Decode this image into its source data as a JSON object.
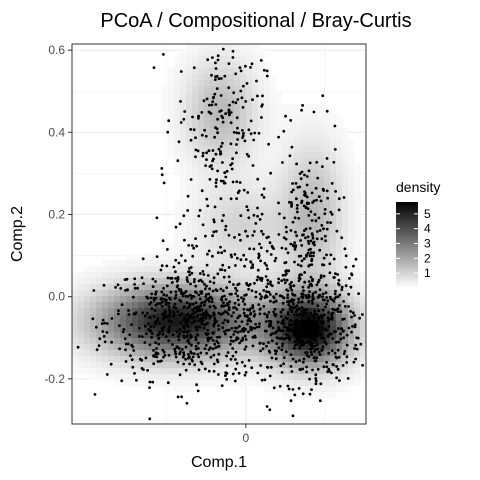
{
  "chart_data": {
    "type": "scatter",
    "title": "PCoA / Compositional / Bray-Curtis",
    "xlabel": "Comp.1",
    "ylabel": "Comp.2",
    "xlim": [
      -0.55,
      0.38
    ],
    "ylim": [
      -0.31,
      0.615
    ],
    "x_ticks": [
      {
        "value": 0,
        "label": "0"
      }
    ],
    "y_ticks": [
      {
        "value": -0.2,
        "label": "-0.2"
      },
      {
        "value": 0.0,
        "label": "0.0"
      },
      {
        "value": 0.2,
        "label": "0.2"
      },
      {
        "value": 0.4,
        "label": "0.4"
      },
      {
        "value": 0.6,
        "label": "0.6"
      }
    ],
    "grid": true,
    "background": "#ffffff",
    "point_color": "#000000",
    "legend": {
      "title": "density",
      "placement": "right",
      "range": [
        0,
        5.8
      ],
      "labels": [
        {
          "value": 1,
          "label": "1"
        },
        {
          "value": 2,
          "label": "2"
        },
        {
          "value": 3,
          "label": "3"
        },
        {
          "value": 4,
          "label": "4"
        },
        {
          "value": 5,
          "label": "5"
        }
      ],
      "colors": [
        "#ffffff",
        "#000000"
      ]
    },
    "point_clusters": [
      {
        "cx": -0.16,
        "cy": -0.06,
        "sx": 0.14,
        "sy": 0.07,
        "n": 700
      },
      {
        "cx": 0.19,
        "cy": -0.07,
        "sx": 0.09,
        "sy": 0.07,
        "n": 500
      },
      {
        "cx": 0.2,
        "cy": 0.14,
        "sx": 0.05,
        "sy": 0.12,
        "n": 200
      },
      {
        "cx": -0.08,
        "cy": 0.43,
        "sx": 0.07,
        "sy": 0.1,
        "n": 180
      },
      {
        "cx": -0.02,
        "cy": 0.15,
        "sx": 0.1,
        "sy": 0.08,
        "n": 120
      }
    ],
    "density_modes": [
      {
        "cx": -0.22,
        "cy": -0.06,
        "sx": 0.17,
        "sy": 0.06,
        "peak": 5.3
      },
      {
        "cx": 0.2,
        "cy": -0.08,
        "sx": 0.09,
        "sy": 0.06,
        "peak": 5.8
      },
      {
        "cx": 0.21,
        "cy": 0.2,
        "sx": 0.07,
        "sy": 0.12,
        "peak": 1.6
      },
      {
        "cx": -0.08,
        "cy": 0.45,
        "sx": 0.08,
        "sy": 0.09,
        "peak": 1.6
      },
      {
        "cx": -0.02,
        "cy": 0.17,
        "sx": 0.1,
        "sy": 0.07,
        "peak": 1.0
      }
    ]
  }
}
